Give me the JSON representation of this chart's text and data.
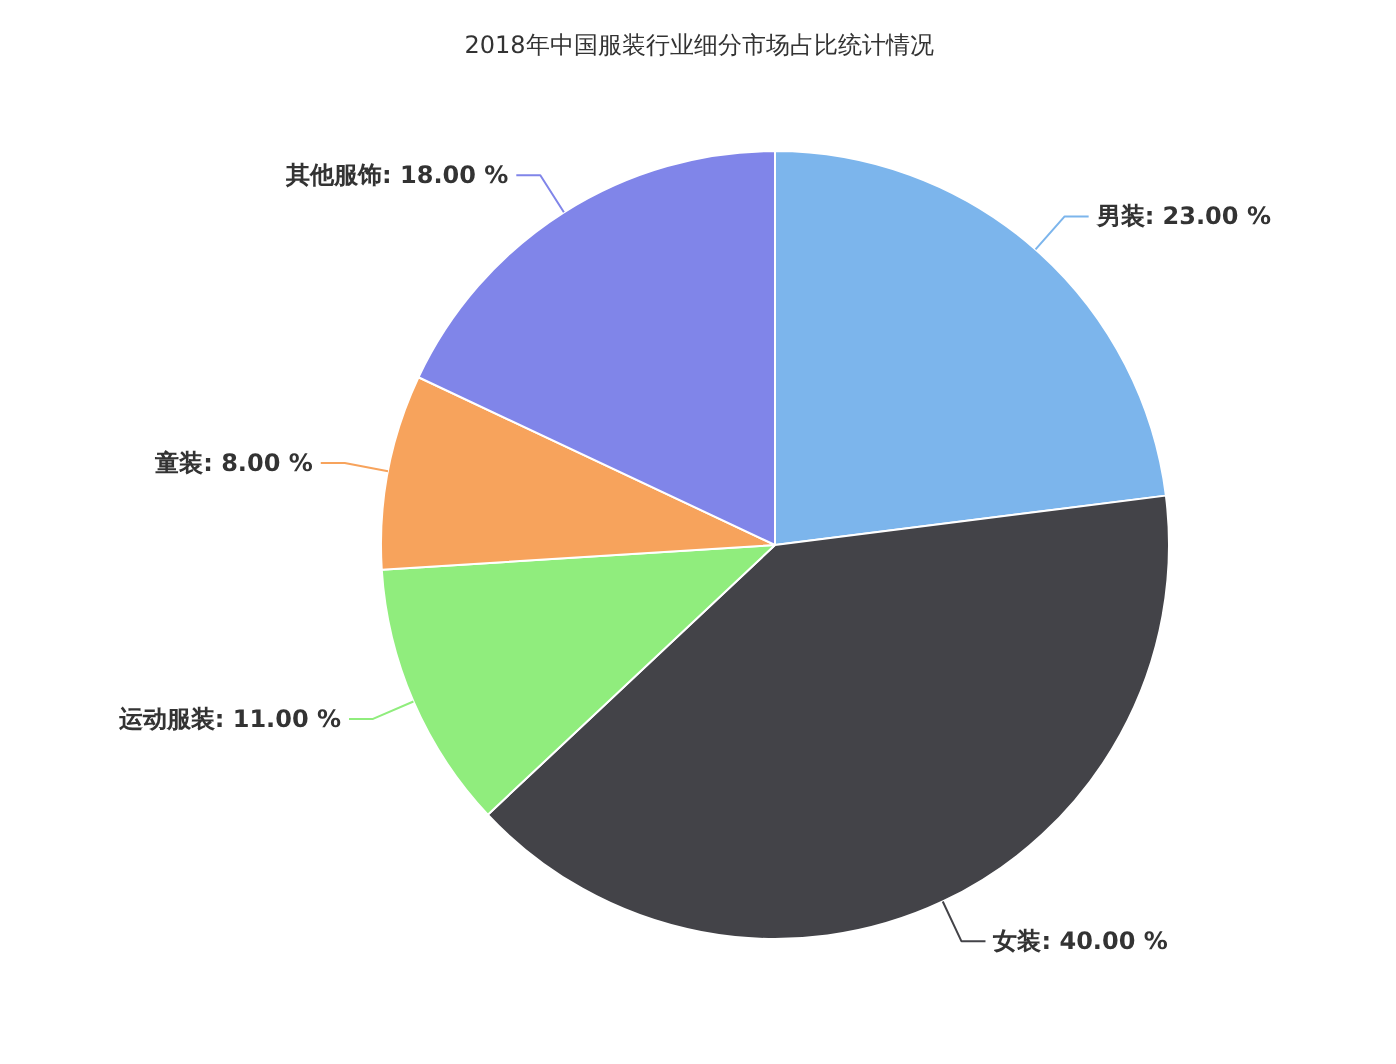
{
  "chart_data": {
    "type": "pie",
    "title": "2018年中国服装行业细分市场占比统计情况",
    "categories": [
      "男装",
      "女装",
      "运动服装",
      "童装",
      "其他服饰"
    ],
    "values": [
      23,
      40,
      11,
      8,
      18
    ],
    "value_labels": [
      "23.00 %",
      "40.00 %",
      "11.00 %",
      "8.00 %",
      "18.00 %"
    ],
    "colors": [
      "#7cb5ec",
      "#434348",
      "#90ed7d",
      "#f7a35c",
      "#8085e9"
    ],
    "legend": false
  }
}
